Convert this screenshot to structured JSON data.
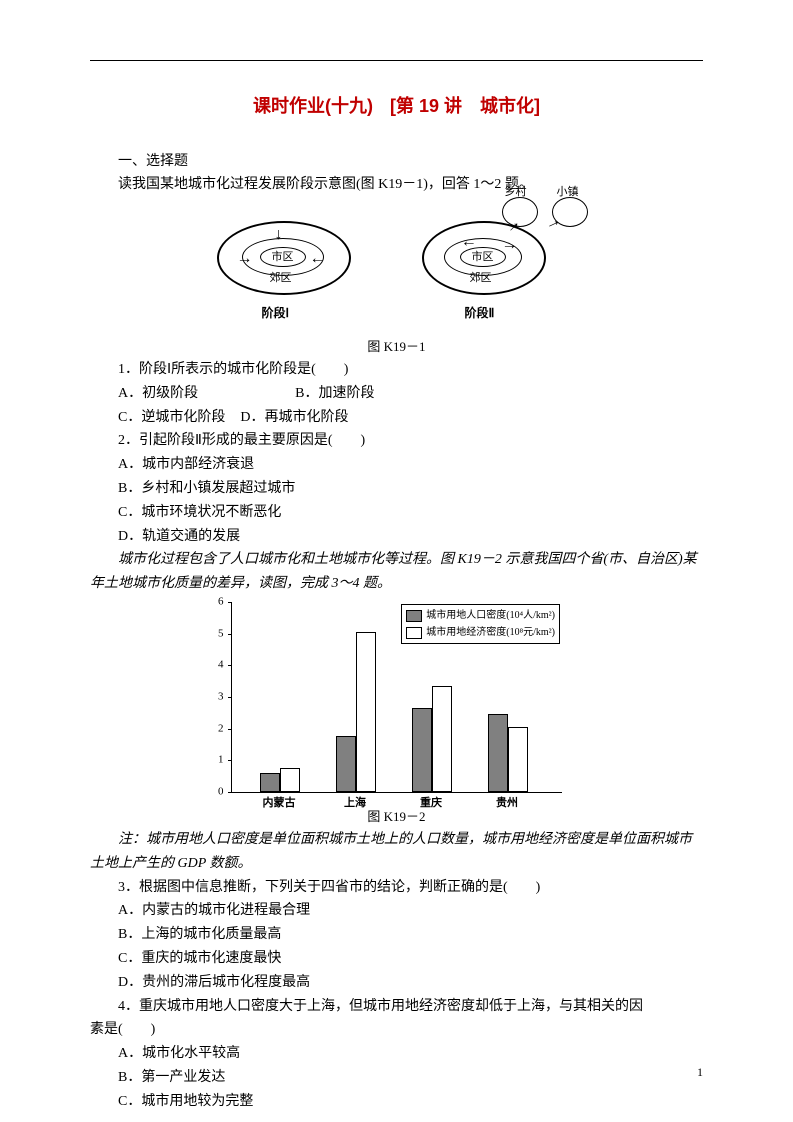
{
  "title_main": "课时作业(十九)",
  "title_sub": "[第 19 讲　城市化]",
  "title_color": "#c00000",
  "section1": "一、选择题",
  "intro1": "读我国某地城市化过程发展阶段示意图(图 K19－1)，回答 1～2 题。",
  "fig1": {
    "caption": "图 K19－1",
    "inner": "市区",
    "suburb": "郊区",
    "village": "乡村",
    "town": "小镇",
    "phase1": "阶段Ⅰ",
    "phase2": "阶段Ⅱ"
  },
  "q1": {
    "stem": "1．阶段Ⅰ所表示的城市化阶段是(　　)",
    "A": "A．初级阶段",
    "B": "B．加速阶段",
    "C": "C．逆城市化阶段",
    "D": "D．再城市化阶段"
  },
  "q2": {
    "stem": "2．引起阶段Ⅱ形成的最主要原因是(　　)",
    "A": "A．城市内部经济衰退",
    "B": "B．乡村和小镇发展超过城市",
    "C": "C．城市环境状况不断恶化",
    "D": "D．轨道交通的发展"
  },
  "intro2": "城市化过程包含了人口城市化和土地城市化等过程。图 K19－2 示意我国四个省(市、自治区)某年土地城市化质量的差异，读图，完成 3～4 题。",
  "fig2": {
    "caption": "图 K19－2",
    "legend1": "城市用地人口密度(10⁴人/km²)",
    "legend2": "城市用地经济密度(10⁸元/km²)",
    "ylim": [
      0,
      6
    ],
    "ytick_step": 1,
    "categories": [
      "内蒙古",
      "上海",
      "重庆",
      "贵州"
    ],
    "series": {
      "pop": [
        0.55,
        1.7,
        2.6,
        2.4
      ],
      "econ": [
        0.7,
        5.0,
        3.3,
        2.0
      ]
    },
    "bar_fill_color": "#808080",
    "bar_open_color": "#ffffff",
    "border_color": "#000000",
    "label_fontsize": 11
  },
  "note": "注：城市用地人口密度是单位面积城市土地上的人口数量，城市用地经济密度是单位面积城市土地上产生的 GDP 数额。",
  "q3": {
    "stem": "3．根据图中信息推断，下列关于四省市的结论，判断正确的是(　　)",
    "A": "A．内蒙古的城市化进程最合理",
    "B": "B．上海的城市化质量最高",
    "C": "C．重庆的城市化速度最快",
    "D": "D．贵州的滞后城市化程度最高"
  },
  "q4": {
    "stem_a": "4．重庆城市用地人口密度大于上海，但城市用地经济密度却低于上海，与其相关的因",
    "stem_b": "素是(　　)",
    "A": "A．城市化水平较高",
    "B": "B．第一产业发达",
    "C": "C．城市用地较为完整"
  },
  "pagenum": "1"
}
